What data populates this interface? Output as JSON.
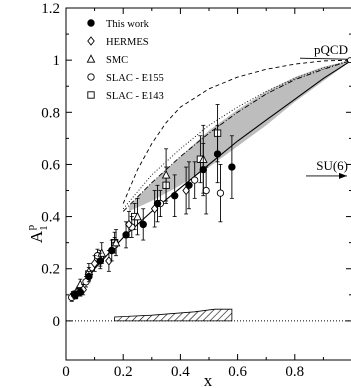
{
  "chart_data": {
    "type": "scatter",
    "xlabel": "x",
    "ylabel": "A",
    "ylabel_sup": "p",
    "ylabel_sub": "1",
    "xlim": [
      0,
      1
    ],
    "ylim": [
      -0.15,
      1.2
    ],
    "x_ticks": [
      "0",
      "0.2",
      "0.4",
      "0.6",
      "0.8"
    ],
    "x_tick_values": [
      0,
      0.2,
      0.4,
      0.6,
      0.8
    ],
    "y_ticks": [
      "0",
      "0.2",
      "0.4",
      "0.6",
      "0.8",
      "1",
      "1.2"
    ],
    "y_tick_values": [
      0,
      0.2,
      0.4,
      0.6,
      0.8,
      1.0,
      1.2
    ],
    "legend_placement": "top-left",
    "series": [
      {
        "name": "This work",
        "marker": "filled-circle",
        "points": [
          {
            "x": 0.03,
            "y": 0.1,
            "err": 0.015
          },
          {
            "x": 0.05,
            "y": 0.11,
            "err": 0.015
          },
          {
            "x": 0.08,
            "y": 0.17,
            "err": 0.02
          },
          {
            "x": 0.12,
            "y": 0.23,
            "err": 0.03
          },
          {
            "x": 0.16,
            "y": 0.27,
            "err": 0.04
          },
          {
            "x": 0.21,
            "y": 0.33,
            "err": 0.05
          },
          {
            "x": 0.27,
            "y": 0.37,
            "err": 0.06
          },
          {
            "x": 0.32,
            "y": 0.45,
            "err": 0.07
          },
          {
            "x": 0.38,
            "y": 0.48,
            "err": 0.08
          },
          {
            "x": 0.43,
            "y": 0.52,
            "err": 0.09
          },
          {
            "x": 0.48,
            "y": 0.58,
            "err": 0.1
          },
          {
            "x": 0.53,
            "y": 0.64,
            "err": 0.11
          },
          {
            "x": 0.58,
            "y": 0.59,
            "err": 0.12
          }
        ]
      },
      {
        "name": "HERMES",
        "marker": "open-diamond",
        "points": [
          {
            "x": 0.035,
            "y": 0.1,
            "err": 0.015
          },
          {
            "x": 0.06,
            "y": 0.12,
            "err": 0.02
          },
          {
            "x": 0.1,
            "y": 0.22,
            "err": 0.03
          },
          {
            "x": 0.15,
            "y": 0.23,
            "err": 0.04
          },
          {
            "x": 0.22,
            "y": 0.37,
            "err": 0.05
          },
          {
            "x": 0.31,
            "y": 0.43,
            "err": 0.07
          },
          {
            "x": 0.42,
            "y": 0.5,
            "err": 0.09
          }
        ]
      },
      {
        "name": "SMC",
        "marker": "open-triangle",
        "points": [
          {
            "x": 0.05,
            "y": 0.14,
            "err": 0.02
          },
          {
            "x": 0.08,
            "y": 0.19,
            "err": 0.03
          },
          {
            "x": 0.125,
            "y": 0.26,
            "err": 0.04
          },
          {
            "x": 0.175,
            "y": 0.3,
            "err": 0.05
          },
          {
            "x": 0.25,
            "y": 0.4,
            "err": 0.07
          },
          {
            "x": 0.35,
            "y": 0.56,
            "err": 0.1
          },
          {
            "x": 0.48,
            "y": 0.62,
            "err": 0.13
          }
        ]
      },
      {
        "name": "SLAC - E155",
        "marker": "open-circle",
        "points": [
          {
            "x": 0.02,
            "y": 0.09,
            "err": 0.015
          },
          {
            "x": 0.04,
            "y": 0.11,
            "err": 0.015
          },
          {
            "x": 0.07,
            "y": 0.15,
            "err": 0.02
          },
          {
            "x": 0.11,
            "y": 0.25,
            "err": 0.025
          },
          {
            "x": 0.17,
            "y": 0.29,
            "err": 0.03
          },
          {
            "x": 0.23,
            "y": 0.36,
            "err": 0.04
          },
          {
            "x": 0.33,
            "y": 0.45,
            "err": 0.05
          },
          {
            "x": 0.45,
            "y": 0.54,
            "err": 0.07
          },
          {
            "x": 0.49,
            "y": 0.5,
            "err": 0.09
          },
          {
            "x": 0.54,
            "y": 0.49,
            "err": 0.11
          }
        ]
      },
      {
        "name": "SLAC - E143",
        "marker": "open-square",
        "points": [
          {
            "x": 0.03,
            "y": 0.1,
            "err": 0.015
          },
          {
            "x": 0.05,
            "y": 0.12,
            "err": 0.02
          },
          {
            "x": 0.08,
            "y": 0.18,
            "err": 0.025
          },
          {
            "x": 0.12,
            "y": 0.24,
            "err": 0.03
          },
          {
            "x": 0.17,
            "y": 0.3,
            "err": 0.04
          },
          {
            "x": 0.24,
            "y": 0.4,
            "err": 0.05
          },
          {
            "x": 0.35,
            "y": 0.52,
            "err": 0.07
          },
          {
            "x": 0.47,
            "y": 0.62,
            "err": 0.09
          },
          {
            "x": 0.53,
            "y": 0.72,
            "err": 0.11
          }
        ]
      }
    ],
    "curves": [
      {
        "style": "solid",
        "points": [
          [
            0.03,
            0.09
          ],
          [
            0.1,
            0.2
          ],
          [
            0.2,
            0.32
          ],
          [
            0.3,
            0.42
          ],
          [
            0.4,
            0.51
          ],
          [
            0.5,
            0.6
          ],
          [
            0.6,
            0.69
          ],
          [
            0.7,
            0.77
          ],
          [
            0.8,
            0.85
          ],
          [
            0.9,
            0.93
          ],
          [
            1.0,
            1.0
          ]
        ]
      },
      {
        "style": "dashed",
        "points": [
          [
            0.2,
            0.45
          ],
          [
            0.25,
            0.58
          ],
          [
            0.3,
            0.68
          ],
          [
            0.35,
            0.76
          ],
          [
            0.4,
            0.82
          ],
          [
            0.5,
            0.89
          ],
          [
            0.6,
            0.935
          ],
          [
            0.7,
            0.965
          ],
          [
            0.8,
            0.985
          ],
          [
            0.9,
            0.997
          ],
          [
            1.0,
            1.0
          ]
        ]
      },
      {
        "style": "dotted",
        "points": [
          [
            0.2,
            0.43
          ],
          [
            0.3,
            0.56
          ],
          [
            0.4,
            0.66
          ],
          [
            0.5,
            0.75
          ],
          [
            0.6,
            0.82
          ],
          [
            0.7,
            0.88
          ],
          [
            0.8,
            0.93
          ],
          [
            0.9,
            0.97
          ],
          [
            1.0,
            1.0
          ]
        ]
      },
      {
        "style": "dashdot",
        "points": [
          [
            0.2,
            0.42
          ],
          [
            0.3,
            0.53
          ],
          [
            0.4,
            0.63
          ],
          [
            0.5,
            0.72
          ],
          [
            0.6,
            0.8
          ],
          [
            0.7,
            0.87
          ],
          [
            0.8,
            0.925
          ],
          [
            0.9,
            0.965
          ],
          [
            1.0,
            1.0
          ]
        ]
      }
    ],
    "band": {
      "upper": [
        [
          0.22,
          0.44
        ],
        [
          0.3,
          0.53
        ],
        [
          0.4,
          0.63
        ],
        [
          0.5,
          0.73
        ],
        [
          0.6,
          0.81
        ],
        [
          0.7,
          0.88
        ],
        [
          0.8,
          0.935
        ],
        [
          0.9,
          0.975
        ],
        [
          1.0,
          1.0
        ]
      ],
      "lower": [
        [
          0.22,
          0.42
        ],
        [
          0.3,
          0.46
        ],
        [
          0.4,
          0.52
        ],
        [
          0.5,
          0.59
        ],
        [
          0.6,
          0.67
        ],
        [
          0.7,
          0.75
        ],
        [
          0.8,
          0.84
        ],
        [
          0.9,
          0.92
        ],
        [
          1.0,
          1.0
        ]
      ]
    },
    "systematic_band": {
      "x_range": [
        0.17,
        0.58
      ],
      "upper": [
        [
          0.17,
          0.015
        ],
        [
          0.3,
          0.022
        ],
        [
          0.45,
          0.035
        ],
        [
          0.52,
          0.045
        ],
        [
          0.58,
          0.045
        ]
      ],
      "baseline": 0
    },
    "annotations": [
      {
        "label": "pQCD",
        "x": 1.0,
        "y": 1.0
      },
      {
        "label": "SU(6)",
        "x": 1.0,
        "y": 0.556
      }
    ],
    "zero_line": {
      "y": 0,
      "style": "dotted"
    }
  }
}
